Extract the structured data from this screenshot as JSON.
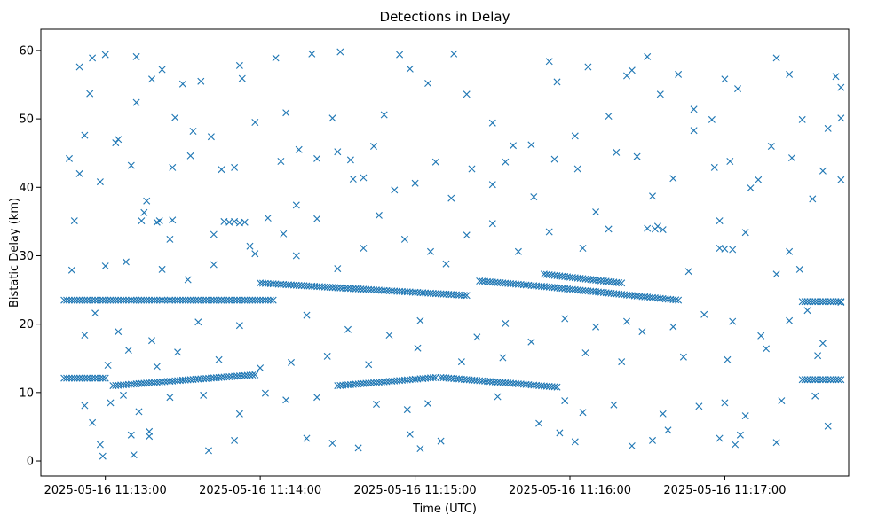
{
  "chart_data": {
    "type": "scatter",
    "title": "Detections in Delay",
    "xlabel": "Time (UTC)",
    "ylabel": "Bistatic Delay (km)",
    "x_start": "2025-05-16T11:12:35",
    "x_end": "2025-05-16T11:17:48",
    "x_ticks": [
      "2025-05-16 11:13:00",
      "2025-05-16 11:14:00",
      "2025-05-16 11:15:00",
      "2025-05-16 11:16:00",
      "2025-05-16 11:17:00"
    ],
    "ylim": [
      -2.2,
      63.1
    ],
    "y_ticks": [
      0,
      10,
      20,
      30,
      40,
      50,
      60
    ],
    "marker": "x",
    "color": "#1f77b4",
    "grid": false,
    "tracks": [
      {
        "t_start": "2025-05-16T11:12:44",
        "t_end": "2025-05-16T11:14:05",
        "delay_start": 23.5,
        "delay_end": 23.5
      },
      {
        "t_start": "2025-05-16T11:12:44",
        "t_end": "2025-05-16T11:13:00",
        "delay_start": 12.1,
        "delay_end": 12.1
      },
      {
        "t_start": "2025-05-16T11:13:03",
        "t_end": "2025-05-16T11:13:30",
        "delay_start": 11.0,
        "delay_end": 11.8
      },
      {
        "t_start": "2025-05-16T11:13:30",
        "t_end": "2025-05-16T11:13:58",
        "delay_start": 11.8,
        "delay_end": 12.6
      },
      {
        "t_start": "2025-05-16T11:14:00",
        "t_end": "2025-05-16T11:15:20",
        "delay_start": 26.0,
        "delay_end": 24.2
      },
      {
        "t_start": "2025-05-16T11:14:30",
        "t_end": "2025-05-16T11:15:08",
        "delay_start": 11.0,
        "delay_end": 12.2
      },
      {
        "t_start": "2025-05-16T11:15:25",
        "t_end": "2025-05-16T11:15:50",
        "delay_start": 26.3,
        "delay_end": 25.5
      },
      {
        "t_start": "2025-05-16T11:15:50",
        "t_end": "2025-05-16T11:16:20",
        "delay_start": 27.3,
        "delay_end": 26.0
      },
      {
        "t_start": "2025-05-16T11:15:50",
        "t_end": "2025-05-16T11:16:42",
        "delay_start": 25.5,
        "delay_end": 23.5
      },
      {
        "t_start": "2025-05-16T11:15:10",
        "t_end": "2025-05-16T11:15:55",
        "delay_start": 12.2,
        "delay_end": 10.8
      },
      {
        "t_start": "2025-05-16T11:17:30",
        "t_end": "2025-05-16T11:17:45",
        "delay_start": 23.3,
        "delay_end": 23.3
      },
      {
        "t_start": "2025-05-16T11:17:30",
        "t_end": "2025-05-16T11:17:45",
        "delay_start": 11.9,
        "delay_end": 11.9
      }
    ],
    "scatter_points": [
      [
        "2025-05-16T11:12:46",
        44.2
      ],
      [
        "2025-05-16T11:12:48",
        35.1
      ],
      [
        "2025-05-16T11:12:50",
        57.6
      ],
      [
        "2025-05-16T11:12:52",
        47.6
      ],
      [
        "2025-05-16T11:12:54",
        53.7
      ],
      [
        "2025-05-16T11:12:55",
        58.9
      ],
      [
        "2025-05-16T11:12:58",
        40.8
      ],
      [
        "2025-05-16T11:13:00",
        59.4
      ],
      [
        "2025-05-16T11:13:05",
        47.0
      ],
      [
        "2025-05-16T11:13:10",
        43.2
      ],
      [
        "2025-05-16T11:13:12",
        59.1
      ],
      [
        "2025-05-16T11:13:12",
        52.4
      ],
      [
        "2025-05-16T11:13:16",
        38.0
      ],
      [
        "2025-05-16T11:13:18",
        55.8
      ],
      [
        "2025-05-16T11:13:22",
        57.2
      ],
      [
        "2025-05-16T11:13:27",
        50.2
      ],
      [
        "2025-05-16T11:13:30",
        55.1
      ],
      [
        "2025-05-16T11:13:34",
        48.2
      ],
      [
        "2025-05-16T11:13:37",
        55.5
      ],
      [
        "2025-05-16T11:13:42",
        33.1
      ],
      [
        "2025-05-16T11:13:45",
        42.6
      ],
      [
        "2025-05-16T11:13:52",
        57.8
      ],
      [
        "2025-05-16T11:13:53",
        55.9
      ],
      [
        "2025-05-16T11:13:58",
        30.3
      ],
      [
        "2025-05-16T11:14:06",
        58.9
      ],
      [
        "2025-05-16T11:14:10",
        50.9
      ],
      [
        "2025-05-16T11:14:15",
        45.5
      ],
      [
        "2025-05-16T11:14:20",
        59.5
      ],
      [
        "2025-05-16T11:14:28",
        50.1
      ],
      [
        "2025-05-16T11:14:31",
        59.8
      ],
      [
        "2025-05-16T11:14:35",
        44.0
      ],
      [
        "2025-05-16T11:14:40",
        41.4
      ],
      [
        "2025-05-16T11:14:48",
        50.6
      ],
      [
        "2025-05-16T11:14:54",
        59.4
      ],
      [
        "2025-05-16T11:14:58",
        57.3
      ],
      [
        "2025-05-16T11:15:05",
        55.2
      ],
      [
        "2025-05-16T11:15:15",
        59.5
      ],
      [
        "2025-05-16T11:15:20",
        53.6
      ],
      [
        "2025-05-16T11:15:30",
        49.4
      ],
      [
        "2025-05-16T11:15:35",
        43.7
      ],
      [
        "2025-05-16T11:15:45",
        46.2
      ],
      [
        "2025-05-16T11:15:52",
        58.4
      ],
      [
        "2025-05-16T11:15:55",
        55.4
      ],
      [
        "2025-05-16T11:16:02",
        47.5
      ],
      [
        "2025-05-16T11:16:07",
        57.6
      ],
      [
        "2025-05-16T11:16:15",
        50.4
      ],
      [
        "2025-05-16T11:16:22",
        56.3
      ],
      [
        "2025-05-16T11:16:24",
        57.1
      ],
      [
        "2025-05-16T11:16:30",
        59.1
      ],
      [
        "2025-05-16T11:16:35",
        53.6
      ],
      [
        "2025-05-16T11:16:42",
        56.5
      ],
      [
        "2025-05-16T11:16:48",
        51.4
      ],
      [
        "2025-05-16T11:16:55",
        49.9
      ],
      [
        "2025-05-16T11:17:00",
        55.8
      ],
      [
        "2025-05-16T11:17:05",
        54.4
      ],
      [
        "2025-05-16T11:17:13",
        41.1
      ],
      [
        "2025-05-16T11:17:20",
        58.9
      ],
      [
        "2025-05-16T11:17:25",
        56.5
      ],
      [
        "2025-05-16T11:17:30",
        49.9
      ],
      [
        "2025-05-16T11:17:38",
        42.4
      ],
      [
        "2025-05-16T11:17:43",
        56.2
      ],
      [
        "2025-05-16T11:17:45",
        54.6
      ],
      [
        "2025-05-16T11:17:45",
        50.1
      ],
      [
        "2025-05-16T11:12:58",
        2.4
      ],
      [
        "2025-05-16T11:12:59",
        0.7
      ],
      [
        "2025-05-16T11:13:10",
        3.8
      ],
      [
        "2025-05-16T11:13:11",
        0.9
      ],
      [
        "2025-05-16T11:13:17",
        4.3
      ],
      [
        "2025-05-16T11:13:17",
        3.6
      ],
      [
        "2025-05-16T11:13:40",
        1.5
      ],
      [
        "2025-05-16T11:13:50",
        3.0
      ],
      [
        "2025-05-16T11:14:18",
        3.3
      ],
      [
        "2025-05-16T11:14:28",
        2.6
      ],
      [
        "2025-05-16T11:14:38",
        1.9
      ],
      [
        "2025-05-16T11:14:58",
        3.9
      ],
      [
        "2025-05-16T11:15:02",
        1.8
      ],
      [
        "2025-05-16T11:15:10",
        2.9
      ],
      [
        "2025-05-16T11:15:48",
        5.5
      ],
      [
        "2025-05-16T11:15:56",
        4.1
      ],
      [
        "2025-05-16T11:16:02",
        2.8
      ],
      [
        "2025-05-16T11:16:24",
        2.2
      ],
      [
        "2025-05-16T11:16:32",
        3.0
      ],
      [
        "2025-05-16T11:16:38",
        4.5
      ],
      [
        "2025-05-16T11:16:58",
        3.3
      ],
      [
        "2025-05-16T11:17:04",
        2.4
      ],
      [
        "2025-05-16T11:17:06",
        3.8
      ],
      [
        "2025-05-16T11:17:20",
        2.7
      ],
      [
        "2025-05-16T11:17:40",
        5.1
      ],
      [
        "2025-05-16T11:12:52",
        8.1
      ],
      [
        "2025-05-16T11:12:55",
        5.6
      ],
      [
        "2025-05-16T11:13:02",
        8.5
      ],
      [
        "2025-05-16T11:13:07",
        9.6
      ],
      [
        "2025-05-16T11:13:13",
        7.2
      ],
      [
        "2025-05-16T11:13:25",
        9.3
      ],
      [
        "2025-05-16T11:13:38",
        9.6
      ],
      [
        "2025-05-16T11:13:52",
        6.9
      ],
      [
        "2025-05-16T11:14:02",
        9.9
      ],
      [
        "2025-05-16T11:14:10",
        8.9
      ],
      [
        "2025-05-16T11:14:22",
        9.3
      ],
      [
        "2025-05-16T11:14:45",
        8.3
      ],
      [
        "2025-05-16T11:14:57",
        7.5
      ],
      [
        "2025-05-16T11:15:05",
        8.4
      ],
      [
        "2025-05-16T11:15:32",
        9.4
      ],
      [
        "2025-05-16T11:15:58",
        8.8
      ],
      [
        "2025-05-16T11:16:05",
        7.1
      ],
      [
        "2025-05-16T11:16:17",
        8.2
      ],
      [
        "2025-05-16T11:16:36",
        6.9
      ],
      [
        "2025-05-16T11:16:50",
        8.0
      ],
      [
        "2025-05-16T11:17:00",
        8.5
      ],
      [
        "2025-05-16T11:17:08",
        6.6
      ],
      [
        "2025-05-16T11:17:22",
        8.8
      ],
      [
        "2025-05-16T11:17:35",
        9.5
      ],
      [
        "2025-05-16T11:12:47",
        27.9
      ],
      [
        "2025-05-16T11:12:52",
        18.4
      ],
      [
        "2025-05-16T11:12:56",
        21.6
      ],
      [
        "2025-05-16T11:13:00",
        28.5
      ],
      [
        "2025-05-16T11:13:05",
        18.9
      ],
      [
        "2025-05-16T11:13:08",
        29.1
      ],
      [
        "2025-05-16T11:13:14",
        35.1
      ],
      [
        "2025-05-16T11:13:18",
        17.6
      ],
      [
        "2025-05-16T11:13:22",
        28.0
      ],
      [
        "2025-05-16T11:13:25",
        32.4
      ],
      [
        "2025-05-16T11:13:32",
        26.5
      ],
      [
        "2025-05-16T11:13:36",
        20.3
      ],
      [
        "2025-05-16T11:13:42",
        28.7
      ],
      [
        "2025-05-16T11:13:46",
        35.0
      ],
      [
        "2025-05-16T11:13:52",
        19.8
      ],
      [
        "2025-05-16T11:13:56",
        31.4
      ],
      [
        "2025-05-16T11:14:03",
        35.5
      ],
      [
        "2025-05-16T11:14:09",
        33.2
      ],
      [
        "2025-05-16T11:14:14",
        30.0
      ],
      [
        "2025-05-16T11:14:18",
        21.3
      ],
      [
        "2025-05-16T11:14:22",
        35.4
      ],
      [
        "2025-05-16T11:14:30",
        28.1
      ],
      [
        "2025-05-16T11:14:34",
        19.2
      ],
      [
        "2025-05-16T11:14:40",
        31.1
      ],
      [
        "2025-05-16T11:14:46",
        35.9
      ],
      [
        "2025-05-16T11:14:50",
        18.4
      ],
      [
        "2025-05-16T11:14:56",
        32.4
      ],
      [
        "2025-05-16T11:15:02",
        20.5
      ],
      [
        "2025-05-16T11:15:06",
        30.6
      ],
      [
        "2025-05-16T11:15:12",
        28.8
      ],
      [
        "2025-05-16T11:15:20",
        33.0
      ],
      [
        "2025-05-16T11:15:24",
        18.1
      ],
      [
        "2025-05-16T11:15:30",
        34.7
      ],
      [
        "2025-05-16T11:15:35",
        20.1
      ],
      [
        "2025-05-16T11:15:40",
        30.6
      ],
      [
        "2025-05-16T11:15:45",
        17.4
      ],
      [
        "2025-05-16T11:15:52",
        33.5
      ],
      [
        "2025-05-16T11:15:58",
        20.8
      ],
      [
        "2025-05-16T11:16:05",
        31.1
      ],
      [
        "2025-05-16T11:16:10",
        19.6
      ],
      [
        "2025-05-16T11:16:15",
        33.9
      ],
      [
        "2025-05-16T11:16:22",
        20.4
      ],
      [
        "2025-05-16T11:16:28",
        18.9
      ],
      [
        "2025-05-16T11:16:34",
        34.3
      ],
      [
        "2025-05-16T11:16:40",
        19.6
      ],
      [
        "2025-05-16T11:16:46",
        27.7
      ],
      [
        "2025-05-16T11:16:52",
        21.4
      ],
      [
        "2025-05-16T11:16:58",
        35.1
      ],
      [
        "2025-05-16T11:17:03",
        20.4
      ],
      [
        "2025-05-16T11:17:08",
        33.4
      ],
      [
        "2025-05-16T11:17:14",
        18.3
      ],
      [
        "2025-05-16T11:17:20",
        27.3
      ],
      [
        "2025-05-16T11:17:25",
        20.5
      ],
      [
        "2025-05-16T11:17:32",
        22.0
      ],
      [
        "2025-05-16T11:17:38",
        17.2
      ],
      [
        "2025-05-16T11:17:45",
        23.2
      ],
      [
        "2025-05-16T11:12:50",
        42.0
      ],
      [
        "2025-05-16T11:13:04",
        46.5
      ],
      [
        "2025-05-16T11:13:15",
        36.3
      ],
      [
        "2025-05-16T11:13:26",
        42.9
      ],
      [
        "2025-05-16T11:13:33",
        44.6
      ],
      [
        "2025-05-16T11:13:41",
        47.4
      ],
      [
        "2025-05-16T11:13:50",
        42.9
      ],
      [
        "2025-05-16T11:13:58",
        49.5
      ],
      [
        "2025-05-16T11:14:08",
        43.8
      ],
      [
        "2025-05-16T11:14:14",
        37.4
      ],
      [
        "2025-05-16T11:14:22",
        44.2
      ],
      [
        "2025-05-16T11:14:30",
        45.2
      ],
      [
        "2025-05-16T11:14:36",
        41.2
      ],
      [
        "2025-05-16T11:14:44",
        46.0
      ],
      [
        "2025-05-16T11:14:52",
        39.6
      ],
      [
        "2025-05-16T11:15:00",
        40.6
      ],
      [
        "2025-05-16T11:15:08",
        43.7
      ],
      [
        "2025-05-16T11:15:14",
        38.4
      ],
      [
        "2025-05-16T11:15:22",
        42.7
      ],
      [
        "2025-05-16T11:15:30",
        40.4
      ],
      [
        "2025-05-16T11:15:38",
        46.1
      ],
      [
        "2025-05-16T11:15:46",
        38.6
      ],
      [
        "2025-05-16T11:15:54",
        44.1
      ],
      [
        "2025-05-16T11:16:03",
        42.7
      ],
      [
        "2025-05-16T11:16:10",
        36.4
      ],
      [
        "2025-05-16T11:16:18",
        45.1
      ],
      [
        "2025-05-16T11:16:26",
        44.5
      ],
      [
        "2025-05-16T11:16:32",
        38.7
      ],
      [
        "2025-05-16T11:16:40",
        41.3
      ],
      [
        "2025-05-16T11:16:48",
        48.3
      ],
      [
        "2025-05-16T11:16:56",
        42.9
      ],
      [
        "2025-05-16T11:17:02",
        43.8
      ],
      [
        "2025-05-16T11:17:10",
        39.9
      ],
      [
        "2025-05-16T11:17:18",
        46.0
      ],
      [
        "2025-05-16T11:17:26",
        44.3
      ],
      [
        "2025-05-16T11:17:34",
        38.3
      ],
      [
        "2025-05-16T11:17:40",
        48.6
      ],
      [
        "2025-05-16T11:17:45",
        41.1
      ],
      [
        "2025-05-16T11:13:01",
        14.0
      ],
      [
        "2025-05-16T11:13:09",
        16.2
      ],
      [
        "2025-05-16T11:13:20",
        13.8
      ],
      [
        "2025-05-16T11:13:28",
        15.9
      ],
      [
        "2025-05-16T11:13:44",
        14.8
      ],
      [
        "2025-05-16T11:14:00",
        13.6
      ],
      [
        "2025-05-16T11:14:12",
        14.4
      ],
      [
        "2025-05-16T11:14:26",
        15.3
      ],
      [
        "2025-05-16T11:14:42",
        14.1
      ],
      [
        "2025-05-16T11:15:01",
        16.5
      ],
      [
        "2025-05-16T11:15:18",
        14.5
      ],
      [
        "2025-05-16T11:15:34",
        15.1
      ],
      [
        "2025-05-16T11:16:06",
        15.8
      ],
      [
        "2025-05-16T11:16:20",
        14.5
      ],
      [
        "2025-05-16T11:16:44",
        15.2
      ],
      [
        "2025-05-16T11:17:01",
        14.8
      ],
      [
        "2025-05-16T11:17:16",
        16.4
      ],
      [
        "2025-05-16T11:17:36",
        15.4
      ],
      [
        "2025-05-16T11:13:20",
        34.9
      ],
      [
        "2025-05-16T11:13:21",
        35.1
      ],
      [
        "2025-05-16T11:13:26",
        35.2
      ],
      [
        "2025-05-16T11:13:48",
        34.9
      ],
      [
        "2025-05-16T11:13:50",
        35.0
      ],
      [
        "2025-05-16T11:13:52",
        34.8
      ],
      [
        "2025-05-16T11:13:54",
        34.9
      ],
      [
        "2025-05-16T11:16:30",
        34.0
      ],
      [
        "2025-05-16T11:16:33",
        33.9
      ],
      [
        "2025-05-16T11:16:36",
        33.8
      ],
      [
        "2025-05-16T11:16:58",
        31.1
      ],
      [
        "2025-05-16T11:17:00",
        31.0
      ],
      [
        "2025-05-16T11:17:03",
        30.9
      ],
      [
        "2025-05-16T11:17:25",
        30.6
      ],
      [
        "2025-05-16T11:17:29",
        28.0
      ]
    ]
  }
}
